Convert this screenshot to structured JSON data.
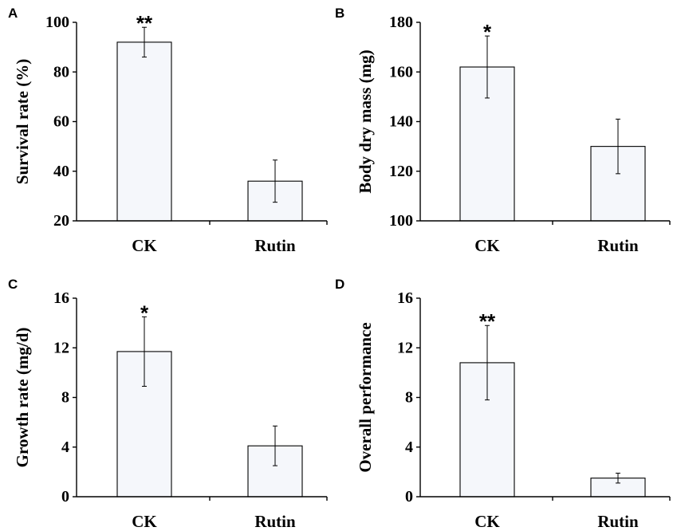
{
  "chart_data": [
    {
      "type": "bar",
      "panel": "A",
      "categories": [
        "CK",
        "Rutin"
      ],
      "values": [
        92,
        36
      ],
      "errors": [
        6,
        8.5
      ],
      "significance": [
        "**",
        ""
      ],
      "title": "",
      "xlabel": "",
      "ylabel": "Survival rate (%)",
      "ylim": [
        20,
        100
      ],
      "yticks": [
        "20",
        "40",
        "60",
        "80",
        "100"
      ]
    },
    {
      "type": "bar",
      "panel": "B",
      "categories": [
        "CK",
        "Rutin"
      ],
      "values": [
        162,
        130
      ],
      "errors": [
        12.5,
        11
      ],
      "significance": [
        "*",
        ""
      ],
      "title": "",
      "xlabel": "",
      "ylabel": "Body dry mass (mg)",
      "ylim": [
        100,
        180
      ],
      "yticks": [
        "100",
        "120",
        "140",
        "160",
        "180"
      ]
    },
    {
      "type": "bar",
      "panel": "C",
      "categories": [
        "CK",
        "Rutin"
      ],
      "values": [
        11.7,
        4.1
      ],
      "errors": [
        2.8,
        1.6
      ],
      "significance": [
        "*",
        ""
      ],
      "title": "",
      "xlabel": "",
      "ylabel": "Growth rate (mg/d)",
      "ylim": [
        0,
        16
      ],
      "yticks": [
        "0",
        "4",
        "8",
        "12",
        "16"
      ]
    },
    {
      "type": "bar",
      "panel": "D",
      "categories": [
        "CK",
        "Rutin"
      ],
      "values": [
        10.8,
        1.5
      ],
      "errors": [
        3,
        0.4
      ],
      "significance": [
        "**",
        ""
      ],
      "title": "",
      "xlabel": "",
      "ylabel": "Overall performance",
      "ylim": [
        0,
        16
      ],
      "yticks": [
        "0",
        "4",
        "8",
        "12",
        "16"
      ]
    }
  ]
}
